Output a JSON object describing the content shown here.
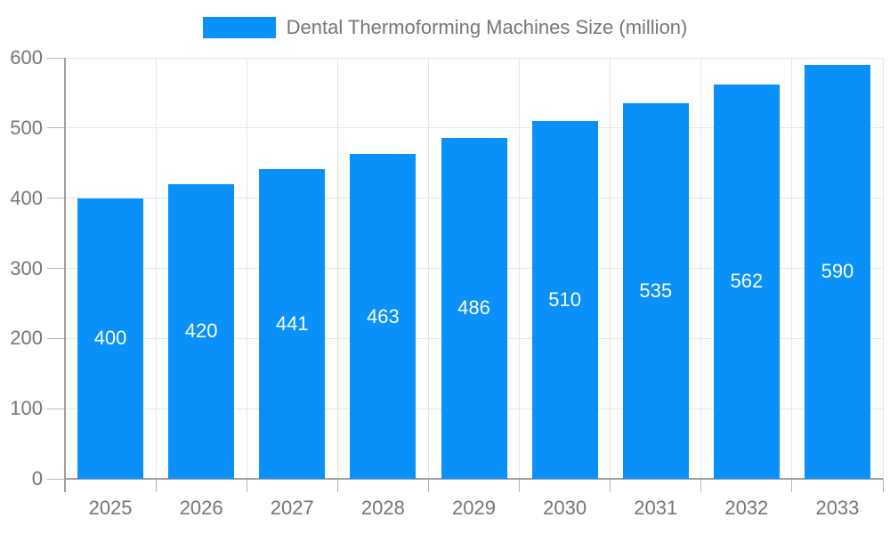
{
  "legend": {
    "swatch_color": "#0990f9",
    "label": "Dental Thermoforming Machines Size (million)"
  },
  "colors": {
    "bar": "#0990f9",
    "grid": "#e6e6e6",
    "axis": "#9e9e9e",
    "tick": "#b5b5b5",
    "tick_label": "#757575",
    "legend_text": "#757575",
    "bar_label": "#ffffff",
    "background": "#ffffff"
  },
  "chart_data": {
    "type": "bar",
    "title": "Dental Thermoforming Machines Size (million)",
    "series": [
      {
        "name": "Dental Thermoforming Machines Size (million)",
        "values": [
          400,
          420,
          441,
          463,
          486,
          510,
          535,
          562,
          590
        ]
      }
    ],
    "categories": [
      "2025",
      "2026",
      "2027",
      "2028",
      "2029",
      "2030",
      "2031",
      "2032",
      "2033"
    ],
    "xlabel": "",
    "ylabel": "",
    "ylim": [
      0,
      600
    ],
    "ytick_step": 100,
    "yticks": [
      0,
      100,
      200,
      300,
      400,
      500,
      600
    ],
    "grid": true,
    "legend_position": "top-center",
    "value_labels": "inside-middle",
    "value_label_color": "#ffffff"
  }
}
